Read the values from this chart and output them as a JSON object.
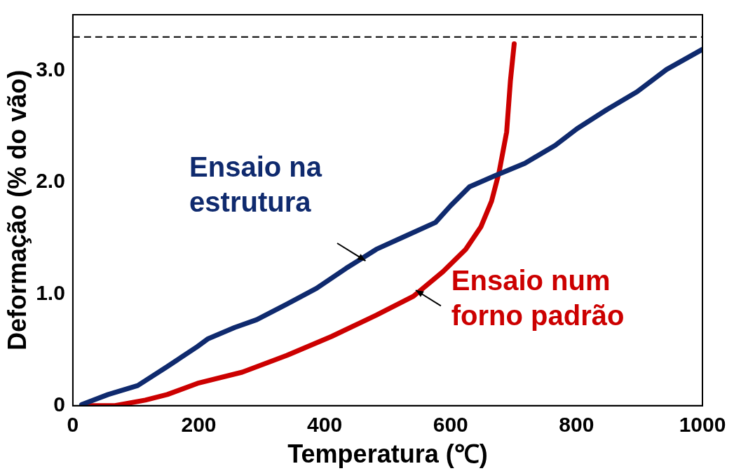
{
  "chart_data": {
    "type": "line",
    "xlabel": "Temperatura (℃)",
    "ylabel": "Deformação (% do vão)",
    "xlim": [
      0,
      1000
    ],
    "xticks": [
      0,
      200,
      400,
      600,
      800,
      1000
    ],
    "ylim": [
      0,
      3.5
    ],
    "yticks": [
      0,
      {
        "value": 1,
        "label": "1.0"
      },
      {
        "value": 2,
        "label": "2.0"
      },
      {
        "value": 3,
        "label": "3.0"
      }
    ],
    "grid": false,
    "legend": false,
    "marker": "none",
    "ref_lines": [
      {
        "axis": "y",
        "value": 3.3,
        "color": "#000000",
        "line_style": "dashed"
      }
    ],
    "series": [
      {
        "name": "Ensaio na estrutura",
        "color": "#0f2a6e",
        "x": [
          14,
          56,
          103,
          150,
          198,
          215,
          257,
          292,
          340,
          387,
          434,
          482,
          529,
          576,
          600,
          630,
          671,
          718,
          766,
          801,
          848,
          896,
          943,
          1000
        ],
        "values": [
          0.01,
          0.1,
          0.18,
          0.35,
          0.53,
          0.6,
          0.7,
          0.77,
          0.91,
          1.05,
          1.23,
          1.4,
          1.52,
          1.64,
          1.79,
          1.96,
          2.06,
          2.17,
          2.33,
          2.48,
          2.65,
          2.81,
          3.01,
          3.19
        ]
      },
      {
        "name": "Ensaio num forno padrão",
        "color": "#cc0000",
        "x": [
          20,
          67,
          115,
          150,
          198,
          269,
          340,
          411,
          482,
          541,
          588,
          624,
          648,
          665,
          677,
          689,
          695,
          701
        ],
        "values": [
          0,
          0,
          0.05,
          0.1,
          0.2,
          0.3,
          0.45,
          0.62,
          0.81,
          0.98,
          1.2,
          1.4,
          1.6,
          1.83,
          2.09,
          2.45,
          2.91,
          3.24
        ]
      }
    ]
  }
}
